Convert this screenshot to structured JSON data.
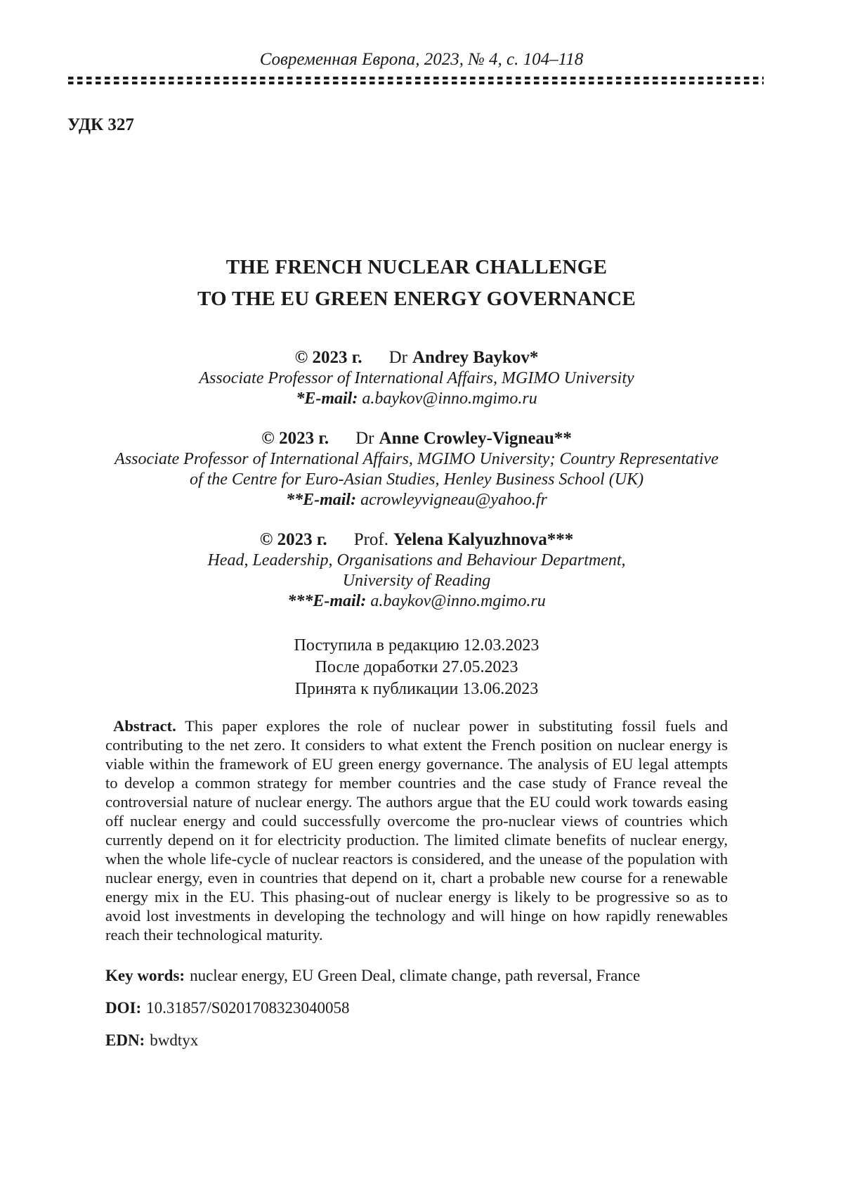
{
  "journal_header": {
    "citation": "Современная Европа, 2023, № 4, с. 104–118",
    "udc": "УДК 327"
  },
  "title": {
    "line1": "THE FRENCH NUCLEAR CHALLENGE",
    "line2": "TO THE EU GREEN ENERGY GOVERNANCE"
  },
  "authors": [
    {
      "copyright": "© 2023 г.",
      "honorific": "Dr",
      "name": "Andrey Baykov*",
      "affiliation_line1": "Associate Professor of International Affairs, MGIMO University",
      "email_label": "*E-mail:",
      "email": "a.baykov@inno.mgimo.ru"
    },
    {
      "copyright": "© 2023 г.",
      "honorific": "Dr",
      "name": "Anne Crowley-Vigneau**",
      "affiliation_line1": "Associate Professor of International Affairs, MGIMO University; Country Representative",
      "affiliation_line2": "of the Centre for Euro-Asian Studies, Henley Business School (UK)",
      "email_label": "**E-mail:",
      "email": "acrowleyvigneau@yahoo.fr"
    },
    {
      "copyright": "© 2023 г.",
      "honorific": "Prof.",
      "name": "Yelena Kalyuzhnova***",
      "affiliation_line1": "Head, Leadership, Organisations and Behaviour Department,",
      "affiliation_line2": "University of Reading",
      "email_label": "***E-mail:",
      "email": "a.baykov@inno.mgimo.ru"
    }
  ],
  "dates": {
    "received": "Поступила в редакцию 12.03.2023",
    "revised": "После доработки 27.05.2023",
    "accepted": "Принята к публикации 13.06.2023"
  },
  "abstract": {
    "label": "Abstract.",
    "text": "This paper explores the role of nuclear power in substituting fossil fuels and contributing to the net zero. It considers to what extent the French position on nuclear energy is viable within the framework of EU green energy governance. The analysis of EU legal attempts to develop a common strategy for member countries and the case study of France reveal the controversial nature of nuclear energy. The authors argue that the EU could work towards easing off nuclear energy and could successfully overcome the pro-nuclear views of countries which currently depend on it for electricity production. The limited climate benefits of nuclear energy, when the whole life-cycle of nuclear reactors is considered, and the unease of the population with nuclear energy, even in countries that depend on it, chart a probable new course for a renewable energy mix in the EU. This phasing-out of nuclear energy is likely to be progressive so as to avoid lost investments in developing the technology and will hinge on how rapidly renewables reach their technological maturity."
  },
  "keywords": {
    "label": "Key words:",
    "text": "nuclear energy, EU Green Deal, climate change, path reversal, France"
  },
  "doi": {
    "label": "DOI:",
    "value": "10.31857/S0201708323040058"
  },
  "edn": {
    "label": "EDN:",
    "value": "bwdtyx"
  }
}
